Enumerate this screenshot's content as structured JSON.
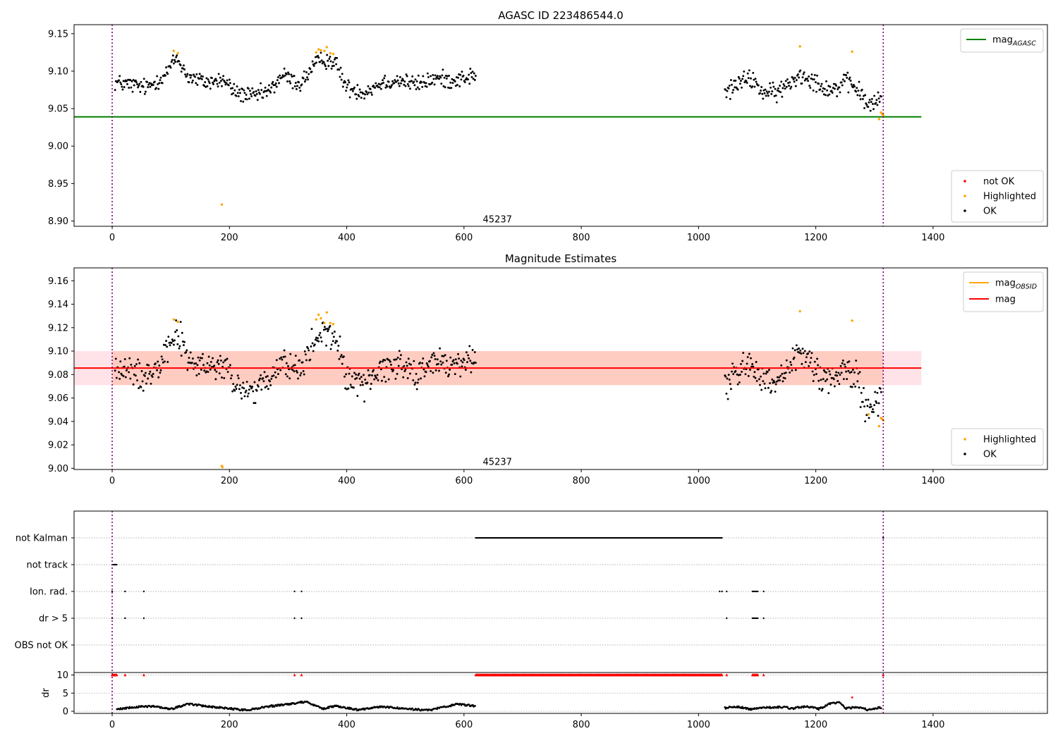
{
  "chart_data": [
    {
      "type": "scatter",
      "title": "AGASC ID 223486544.0",
      "xlim": [
        -65,
        1595
      ],
      "ylim": [
        8.893,
        9.162
      ],
      "x_ticks": [
        0,
        200,
        400,
        600,
        800,
        1000,
        1200,
        1400
      ],
      "y_ticks": [
        8.9,
        8.95,
        9.0,
        9.05,
        9.1,
        9.15
      ],
      "y_tick_labels": [
        "8.90",
        "8.95",
        "9.00",
        "9.05",
        "9.10",
        "9.15"
      ],
      "obsid_label": {
        "text": "45237",
        "x": 657,
        "y": 8.898
      },
      "vlines": [
        0,
        1315
      ],
      "hline": {
        "name": "mag",
        "subscript": "AGASC",
        "value": 9.039,
        "xmin": -65,
        "xmax": 1380,
        "color": "#008000"
      },
      "legend_lines": [
        {
          "label": "mag",
          "subscript": "AGASC",
          "color": "#008000"
        }
      ],
      "legend_markers": [
        {
          "label": "not OK",
          "color": "#ff0000"
        },
        {
          "label": "Highlighted",
          "color": "#ffa500"
        },
        {
          "label": "OK",
          "color": "#000000"
        }
      ],
      "series": [
        {
          "name": "OK",
          "color": "#000000",
          "segments": [
            {
              "x_range": [
                5,
                620
              ],
              "points": [
                [
                  5,
                  9.085
                ],
                [
                  30,
                  9.082
                ],
                [
                  60,
                  9.078
                ],
                [
                  90,
                  9.095
                ],
                [
                  110,
                  9.118
                ],
                [
                  130,
                  9.092
                ],
                [
                  160,
                  9.085
                ],
                [
                  190,
                  9.088
                ],
                [
                  210,
                  9.072
                ],
                [
                  240,
                  9.066
                ],
                [
                  270,
                  9.074
                ],
                [
                  290,
                  9.095
                ],
                [
                  320,
                  9.082
                ],
                [
                  345,
                  9.108
                ],
                [
                  360,
                  9.116
                ],
                [
                  380,
                  9.112
                ],
                [
                  400,
                  9.078
                ],
                [
                  430,
                  9.072
                ],
                [
                  460,
                  9.085
                ],
                [
                  490,
                  9.088
                ],
                [
                  520,
                  9.082
                ],
                [
                  550,
                  9.09
                ],
                [
                  580,
                  9.088
                ],
                [
                  620,
                  9.094
                ]
              ],
              "noise": 0.0085
            },
            {
              "x_range": [
                1045,
                1312
              ],
              "points": [
                [
                  1045,
                  9.07
                ],
                [
                  1070,
                  9.085
                ],
                [
                  1090,
                  9.09
                ],
                [
                  1110,
                  9.072
                ],
                [
                  1130,
                  9.07
                ],
                [
                  1150,
                  9.08
                ],
                [
                  1170,
                  9.095
                ],
                [
                  1190,
                  9.092
                ],
                [
                  1210,
                  9.08
                ],
                [
                  1230,
                  9.075
                ],
                [
                  1250,
                  9.085
                ],
                [
                  1270,
                  9.078
                ],
                [
                  1285,
                  9.058
                ],
                [
                  1300,
                  9.055
                ],
                [
                  1312,
                  9.066
                ]
              ],
              "noise": 0.0095
            }
          ]
        },
        {
          "name": "Highlighted",
          "color": "#ffa500",
          "points": [
            [
              105,
              9.127
            ],
            [
              112,
              9.124
            ],
            [
              187,
              8.922
            ],
            [
              348,
              9.125
            ],
            [
              352,
              9.129
            ],
            [
              356,
              9.128
            ],
            [
              362,
              9.127
            ],
            [
              366,
              9.132
            ],
            [
              372,
              9.124
            ],
            [
              377,
              9.123
            ],
            [
              1173,
              9.133
            ],
            [
              1262,
              9.126
            ],
            [
              1308,
              9.036
            ],
            [
              1311,
              9.045
            ],
            [
              1313,
              9.043
            ],
            [
              1315,
              9.041
            ]
          ]
        }
      ]
    },
    {
      "type": "scatter",
      "title": "Magnitude Estimates",
      "xlim": [
        -65,
        1595
      ],
      "ylim": [
        8.999,
        9.171
      ],
      "x_ticks": [
        0,
        200,
        400,
        600,
        800,
        1000,
        1200,
        1400
      ],
      "y_ticks": [
        9.0,
        9.02,
        9.04,
        9.06,
        9.08,
        9.1,
        9.12,
        9.14,
        9.16
      ],
      "y_tick_labels": [
        "9.00",
        "9.02",
        "9.04",
        "9.06",
        "9.08",
        "9.10",
        "9.12",
        "9.14",
        "9.16"
      ],
      "obsid_label": {
        "text": "45237",
        "x": 657,
        "y": 9.003
      },
      "vlines": [
        0,
        1315
      ],
      "mag_line": {
        "value": 9.0855,
        "xmin": -65,
        "xmax": 1380,
        "color": "#ff0000"
      },
      "bands": [
        {
          "ymin": 9.071,
          "ymax": 9.1,
          "xmin": -65,
          "xmax": 1380,
          "color": "#ffc0cb",
          "opacity": 0.45
        },
        {
          "ymin": 9.071,
          "ymax": 9.1,
          "xmin": 0,
          "xmax": 1315,
          "color": "#ffa07a",
          "opacity": 0.35
        }
      ],
      "legend_lines": [
        {
          "label": "mag",
          "subscript": "OBSID",
          "color": "#ffa500"
        },
        {
          "label": "mag",
          "subscript": "",
          "color": "#ff0000"
        }
      ],
      "legend_markers": [
        {
          "label": "Highlighted",
          "color": "#ffa500"
        },
        {
          "label": "OK",
          "color": "#000000"
        }
      ],
      "series": [
        {
          "name": "OK",
          "color": "#000000",
          "segments": [
            {
              "x_range": [
                5,
                620
              ],
              "points": [
                [
                  5,
                  9.085
                ],
                [
                  30,
                  9.082
                ],
                [
                  60,
                  9.078
                ],
                [
                  90,
                  9.1
                ],
                [
                  110,
                  9.118
                ],
                [
                  130,
                  9.092
                ],
                [
                  160,
                  9.085
                ],
                [
                  190,
                  9.088
                ],
                [
                  210,
                  9.07
                ],
                [
                  240,
                  9.066
                ],
                [
                  270,
                  9.074
                ],
                [
                  290,
                  9.092
                ],
                [
                  320,
                  9.082
                ],
                [
                  345,
                  9.108
                ],
                [
                  360,
                  9.116
                ],
                [
                  380,
                  9.112
                ],
                [
                  400,
                  9.078
                ],
                [
                  430,
                  9.072
                ],
                [
                  460,
                  9.085
                ],
                [
                  490,
                  9.09
                ],
                [
                  520,
                  9.082
                ],
                [
                  550,
                  9.09
                ],
                [
                  580,
                  9.088
                ],
                [
                  620,
                  9.094
                ]
              ],
              "noise": 0.0095
            },
            {
              "x_range": [
                1045,
                1312
              ],
              "points": [
                [
                  1045,
                  9.07
                ],
                [
                  1070,
                  9.085
                ],
                [
                  1090,
                  9.09
                ],
                [
                  1110,
                  9.072
                ],
                [
                  1130,
                  9.07
                ],
                [
                  1150,
                  9.08
                ],
                [
                  1170,
                  9.098
                ],
                [
                  1190,
                  9.092
                ],
                [
                  1210,
                  9.08
                ],
                [
                  1230,
                  9.075
                ],
                [
                  1250,
                  9.085
                ],
                [
                  1270,
                  9.078
                ],
                [
                  1285,
                  9.052
                ],
                [
                  1300,
                  9.055
                ],
                [
                  1312,
                  9.064
                ]
              ],
              "noise": 0.0105
            }
          ]
        },
        {
          "name": "Highlighted",
          "color": "#ffa500",
          "points": [
            [
              105,
              9.127
            ],
            [
              112,
              9.125
            ],
            [
              187,
              9.002
            ],
            [
              188,
              9.001
            ],
            [
              348,
              9.127
            ],
            [
              352,
              9.131
            ],
            [
              356,
              9.128
            ],
            [
              362,
              9.124
            ],
            [
              366,
              9.133
            ],
            [
              372,
              9.124
            ],
            [
              377,
              9.123
            ],
            [
              1173,
              9.134
            ],
            [
              1262,
              9.126
            ],
            [
              1290,
              9.046
            ],
            [
              1308,
              9.036
            ],
            [
              1311,
              9.043
            ],
            [
              1313,
              9.042
            ],
            [
              1315,
              9.041
            ]
          ]
        }
      ]
    },
    {
      "type": "scatter",
      "title": "",
      "xlim": [
        -65,
        1595
      ],
      "x_ticks": [
        0,
        200,
        400,
        600,
        800,
        1000,
        1200,
        1400
      ],
      "vlines": [
        0,
        1315
      ],
      "categories": [
        "not Kalman",
        "not track",
        "Ion. rad.",
        "dr > 5",
        "OBS not OK"
      ],
      "flags": [
        {
          "category": "not Kalman",
          "ranges": [
            [
              620,
              1040
            ]
          ],
          "points": [
            1315
          ]
        },
        {
          "category": "not track",
          "ranges": [
            [
              0,
              8
            ]
          ],
          "points": []
        },
        {
          "category": "Ion. rad.",
          "ranges": [
            [
              1092,
              1102
            ]
          ],
          "points": [
            0,
            22,
            54,
            311,
            323,
            1036,
            1040,
            1048,
            1111
          ]
        },
        {
          "category": "dr > 5",
          "ranges": [
            [
              1092,
              1102
            ]
          ],
          "points": [
            0,
            22,
            54,
            311,
            323,
            1048,
            1111
          ]
        },
        {
          "category": "OBS not OK",
          "ranges": [],
          "points": []
        }
      ],
      "dr_ylabel": "dr",
      "dr_ylim": [
        -0.5,
        10.5
      ],
      "dr_ticks": [
        0,
        5,
        10
      ],
      "dr_tick_labels": [
        "0",
        "5",
        "10"
      ],
      "dr_capped": {
        "value": 10,
        "color": "#ff0000",
        "ranges": [
          [
            0,
            8
          ],
          [
            620,
            1040
          ],
          [
            1092,
            1102
          ]
        ],
        "points": [
          22,
          54,
          311,
          323,
          1048,
          1111,
          1315
        ]
      },
      "dr_red_points": [
        [
          1262,
          3.8
        ]
      ],
      "dr_segments": [
        {
          "x_range": [
            8,
            620
          ],
          "points": [
            [
              8,
              0.5
            ],
            [
              40,
              1.2
            ],
            [
              70,
              1.4
            ],
            [
              100,
              0.6
            ],
            [
              130,
              2.0
            ],
            [
              160,
              1.4
            ],
            [
              190,
              0.9
            ],
            [
              230,
              0.3
            ],
            [
              260,
              1.2
            ],
            [
              300,
              2.0
            ],
            [
              330,
              2.6
            ],
            [
              360,
              0.7
            ],
            [
              380,
              1.5
            ],
            [
              420,
              0.4
            ],
            [
              460,
              1.3
            ],
            [
              500,
              0.7
            ],
            [
              540,
              0.3
            ],
            [
              575,
              1.5
            ],
            [
              590,
              2.0
            ],
            [
              620,
              1.4
            ]
          ],
          "noise": 0.25
        },
        {
          "x_range": [
            1045,
            1312
          ],
          "points": [
            [
              1045,
              0.9
            ],
            [
              1065,
              1.3
            ],
            [
              1090,
              0.5
            ],
            [
              1110,
              0.9
            ],
            [
              1140,
              1.2
            ],
            [
              1160,
              0.8
            ],
            [
              1185,
              1.4
            ],
            [
              1205,
              0.6
            ],
            [
              1225,
              2.2
            ],
            [
              1240,
              2.4
            ],
            [
              1252,
              0.8
            ],
            [
              1270,
              1.2
            ],
            [
              1290,
              0.4
            ],
            [
              1312,
              1.1
            ]
          ],
          "noise": 0.25
        }
      ]
    }
  ]
}
